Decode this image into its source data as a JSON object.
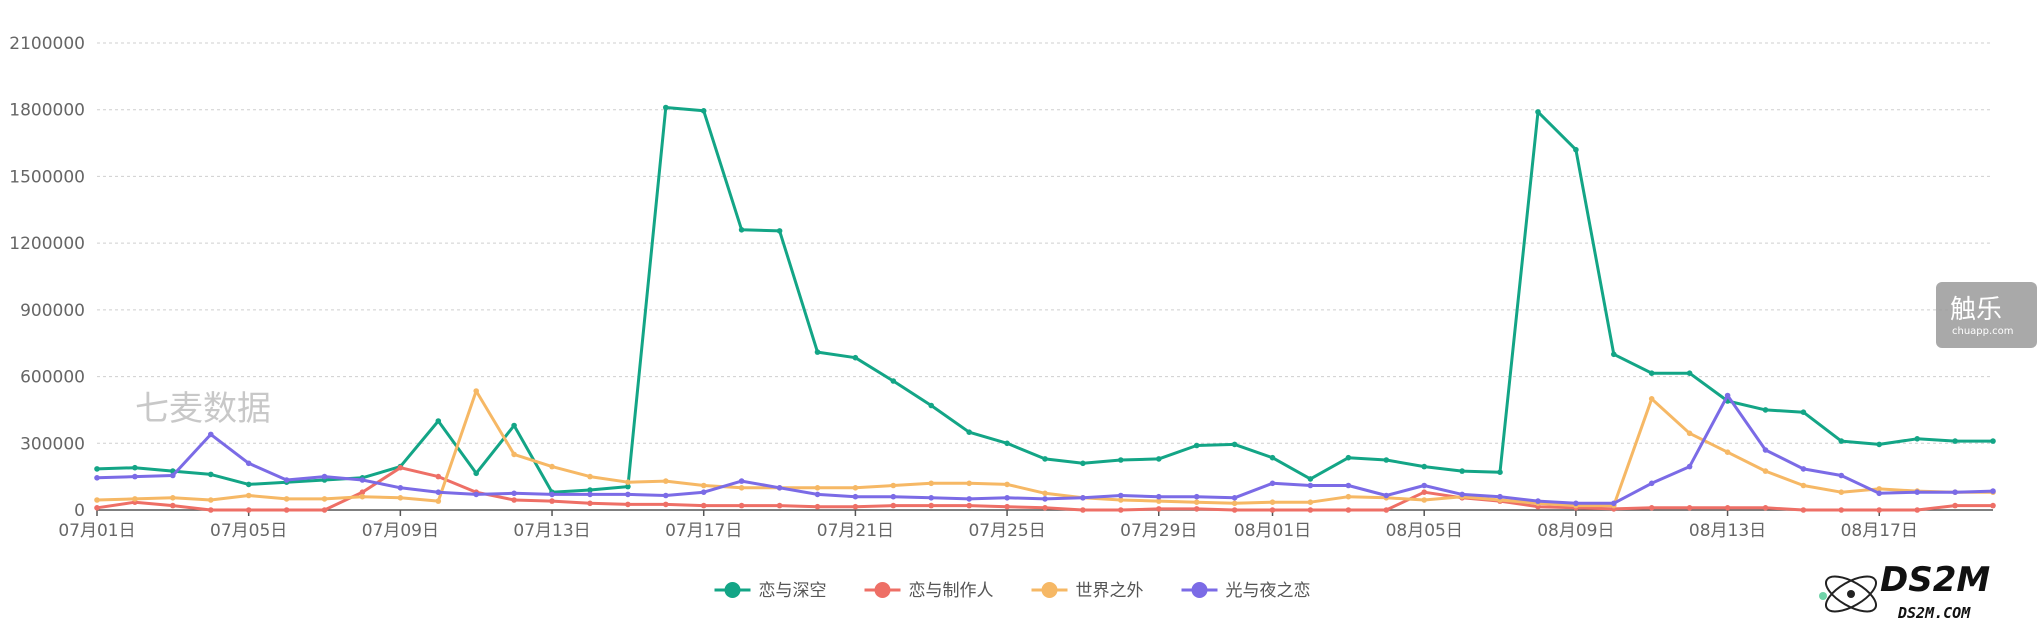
{
  "chart_data": {
    "type": "line",
    "y_ticks": [
      0,
      300000,
      600000,
      900000,
      1200000,
      1500000,
      1800000,
      2100000
    ],
    "ylim": [
      0,
      2100000
    ],
    "x_tick_labels": [
      "07月01日",
      "07月05日",
      "07月09日",
      "07月13日",
      "07月17日",
      "07月21日",
      "07月25日",
      "07月29日",
      "08月01日",
      "08月05日",
      "08月09日",
      "08月13日",
      "08月17日"
    ],
    "x_tick_indices": [
      0,
      4,
      8,
      12,
      16,
      20,
      24,
      28,
      31,
      35,
      39,
      43,
      47
    ],
    "point_count": 51,
    "grid": true,
    "legend_position": "bottom",
    "series": [
      {
        "name": "恋与深空",
        "color": "#13a586",
        "values": [
          185000,
          190000,
          175000,
          160000,
          115000,
          125000,
          135000,
          145000,
          195000,
          400000,
          165000,
          380000,
          80000,
          90000,
          105000,
          1810000,
          1795000,
          1260000,
          1255000,
          710000,
          685000,
          580000,
          470000,
          350000,
          300000,
          230000,
          210000,
          225000,
          230000,
          290000,
          295000,
          235000,
          140000,
          235000,
          225000,
          195000,
          175000,
          170000,
          1790000,
          1620000,
          700000,
          615000,
          615000,
          490000,
          450000,
          440000,
          310000,
          295000,
          320000,
          310000,
          310000
        ]
      },
      {
        "name": "恋与制作人",
        "color": "#ee6f66",
        "values": [
          10000,
          35000,
          20000,
          0,
          0,
          0,
          0,
          80000,
          190000,
          150000,
          80000,
          45000,
          40000,
          30000,
          25000,
          25000,
          20000,
          20000,
          20000,
          15000,
          15000,
          20000,
          20000,
          20000,
          15000,
          10000,
          0,
          0,
          5000,
          5000,
          0,
          0,
          0,
          0,
          0,
          80000,
          55000,
          40000,
          15000,
          10000,
          5000,
          10000,
          10000,
          10000,
          10000,
          0,
          0,
          0,
          0,
          20000,
          20000
        ]
      },
      {
        "name": "世界之外",
        "color": "#f6b865",
        "values": [
          45000,
          50000,
          55000,
          45000,
          65000,
          50000,
          50000,
          60000,
          55000,
          40000,
          535000,
          250000,
          195000,
          150000,
          125000,
          130000,
          110000,
          100000,
          100000,
          100000,
          100000,
          110000,
          120000,
          120000,
          115000,
          75000,
          55000,
          45000,
          40000,
          35000,
          30000,
          35000,
          35000,
          60000,
          55000,
          45000,
          60000,
          45000,
          30000,
          20000,
          20000,
          500000,
          345000,
          260000,
          175000,
          110000,
          80000,
          95000,
          85000,
          80000,
          80000
        ]
      },
      {
        "name": "光与夜之恋",
        "color": "#7b6be6",
        "values": [
          145000,
          150000,
          155000,
          340000,
          210000,
          135000,
          150000,
          135000,
          100000,
          80000,
          70000,
          75000,
          70000,
          70000,
          70000,
          65000,
          80000,
          130000,
          100000,
          70000,
          60000,
          60000,
          55000,
          50000,
          55000,
          50000,
          55000,
          65000,
          60000,
          60000,
          55000,
          120000,
          110000,
          110000,
          65000,
          110000,
          70000,
          60000,
          40000,
          30000,
          30000,
          120000,
          195000,
          515000,
          270000,
          185000,
          155000,
          75000,
          80000,
          80000,
          85000
        ]
      }
    ]
  },
  "watermark": {
    "text": "七麦数据"
  },
  "badge": {
    "title": "触乐",
    "subtitle": "chuapp.com"
  },
  "logo": {
    "title": "DS2M",
    "subtitle": "DS2M.COM"
  }
}
